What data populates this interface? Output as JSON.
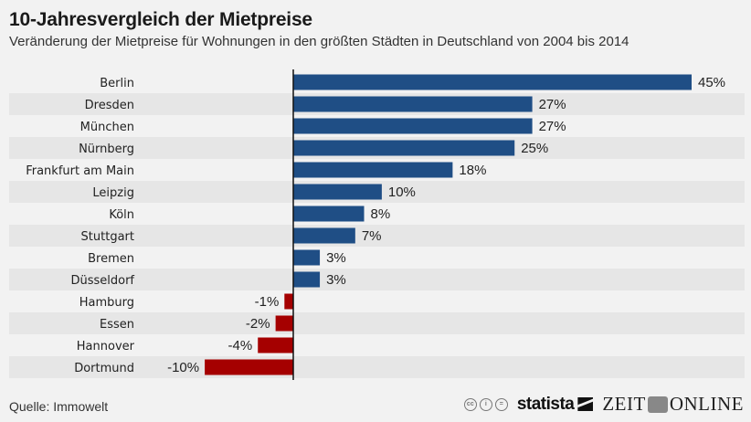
{
  "header": {
    "title": "10-Jahresvergleich der Mietpreise",
    "subtitle": "Veränderung der Mietpreise für Wohnungen in den größten Städten in Deutschland von 2004 bis 2014"
  },
  "footer": {
    "source": "Quelle: Immowelt",
    "cc_icons": [
      "cc-icon",
      "by-icon",
      "nd-icon"
    ],
    "statista": "statista",
    "zeit_left": "ZEIT",
    "zeit_right": "ONLINE"
  },
  "colors": {
    "positive": "#1f4e85",
    "negative": "#a50000",
    "stripe": "#e6e6e6",
    "background": "#f2f2f2",
    "axis": "#111111"
  },
  "chart_data": {
    "type": "bar",
    "orientation": "horizontal",
    "title": "10-Jahresvergleich der Mietpreise",
    "subtitle": "Veränderung der Mietpreise für Wohnungen in den größten Städten in Deutschland von 2004 bis 2014",
    "xlabel": "",
    "ylabel": "",
    "unit": "%",
    "xlim": [
      -10,
      45
    ],
    "grid": false,
    "legend": "none",
    "categories": [
      "Berlin",
      "Dresden",
      "München",
      "Nürnberg",
      "Frankfurt am Main",
      "Leipzig",
      "Köln",
      "Stuttgart",
      "Bremen",
      "Düsseldorf",
      "Hamburg",
      "Essen",
      "Hannover",
      "Dortmund"
    ],
    "values": [
      45,
      27,
      27,
      25,
      18,
      10,
      8,
      7,
      3,
      3,
      -1,
      -2,
      -4,
      -10
    ],
    "value_labels": [
      "45%",
      "27%",
      "27%",
      "25%",
      "18%",
      "10%",
      "8%",
      "7%",
      "3%",
      "3%",
      "-1%",
      "-2%",
      "-4%",
      "-10%"
    ],
    "source": "Quelle: Immowelt"
  }
}
